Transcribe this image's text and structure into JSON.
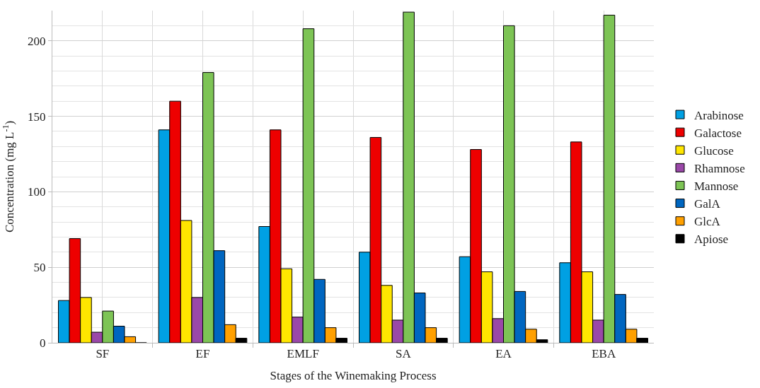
{
  "chart_data": {
    "type": "bar",
    "xlabel": "Stages of the Winemaking Process",
    "ylabel": "Concentration (mg L$^{-1}$)",
    "categories": [
      "SF",
      "EF",
      "EMLF",
      "SA",
      "EA",
      "EBA"
    ],
    "series": [
      {
        "name": "Arabinose",
        "color": "#00a0e3",
        "values": [
          28,
          141,
          77,
          60,
          57,
          53
        ]
      },
      {
        "name": "Galactose",
        "color": "#ee0000",
        "values": [
          69,
          160,
          141,
          136,
          128,
          133
        ]
      },
      {
        "name": "Glucose",
        "color": "#ffe600",
        "values": [
          30,
          81,
          49,
          38,
          47,
          47
        ]
      },
      {
        "name": "Rhamnose",
        "color": "#9a48a8",
        "values": [
          7,
          30,
          17,
          15,
          16,
          15
        ]
      },
      {
        "name": "Mannose",
        "color": "#7dc455",
        "values": [
          21,
          179,
          208,
          219,
          210,
          217
        ]
      },
      {
        "name": "GalA",
        "color": "#0066c0",
        "values": [
          11,
          61,
          42,
          33,
          34,
          32
        ]
      },
      {
        "name": "GlcA",
        "color": "#ffa000",
        "values": [
          4,
          12,
          10,
          10,
          9,
          9
        ]
      },
      {
        "name": "Apiose",
        "color": "#000000",
        "values": [
          0,
          3,
          3,
          3,
          2,
          3
        ]
      }
    ],
    "ylim": [
      0,
      220
    ],
    "yticks": [
      0,
      50,
      100,
      150,
      200
    ],
    "grid": true,
    "legend": "right"
  }
}
